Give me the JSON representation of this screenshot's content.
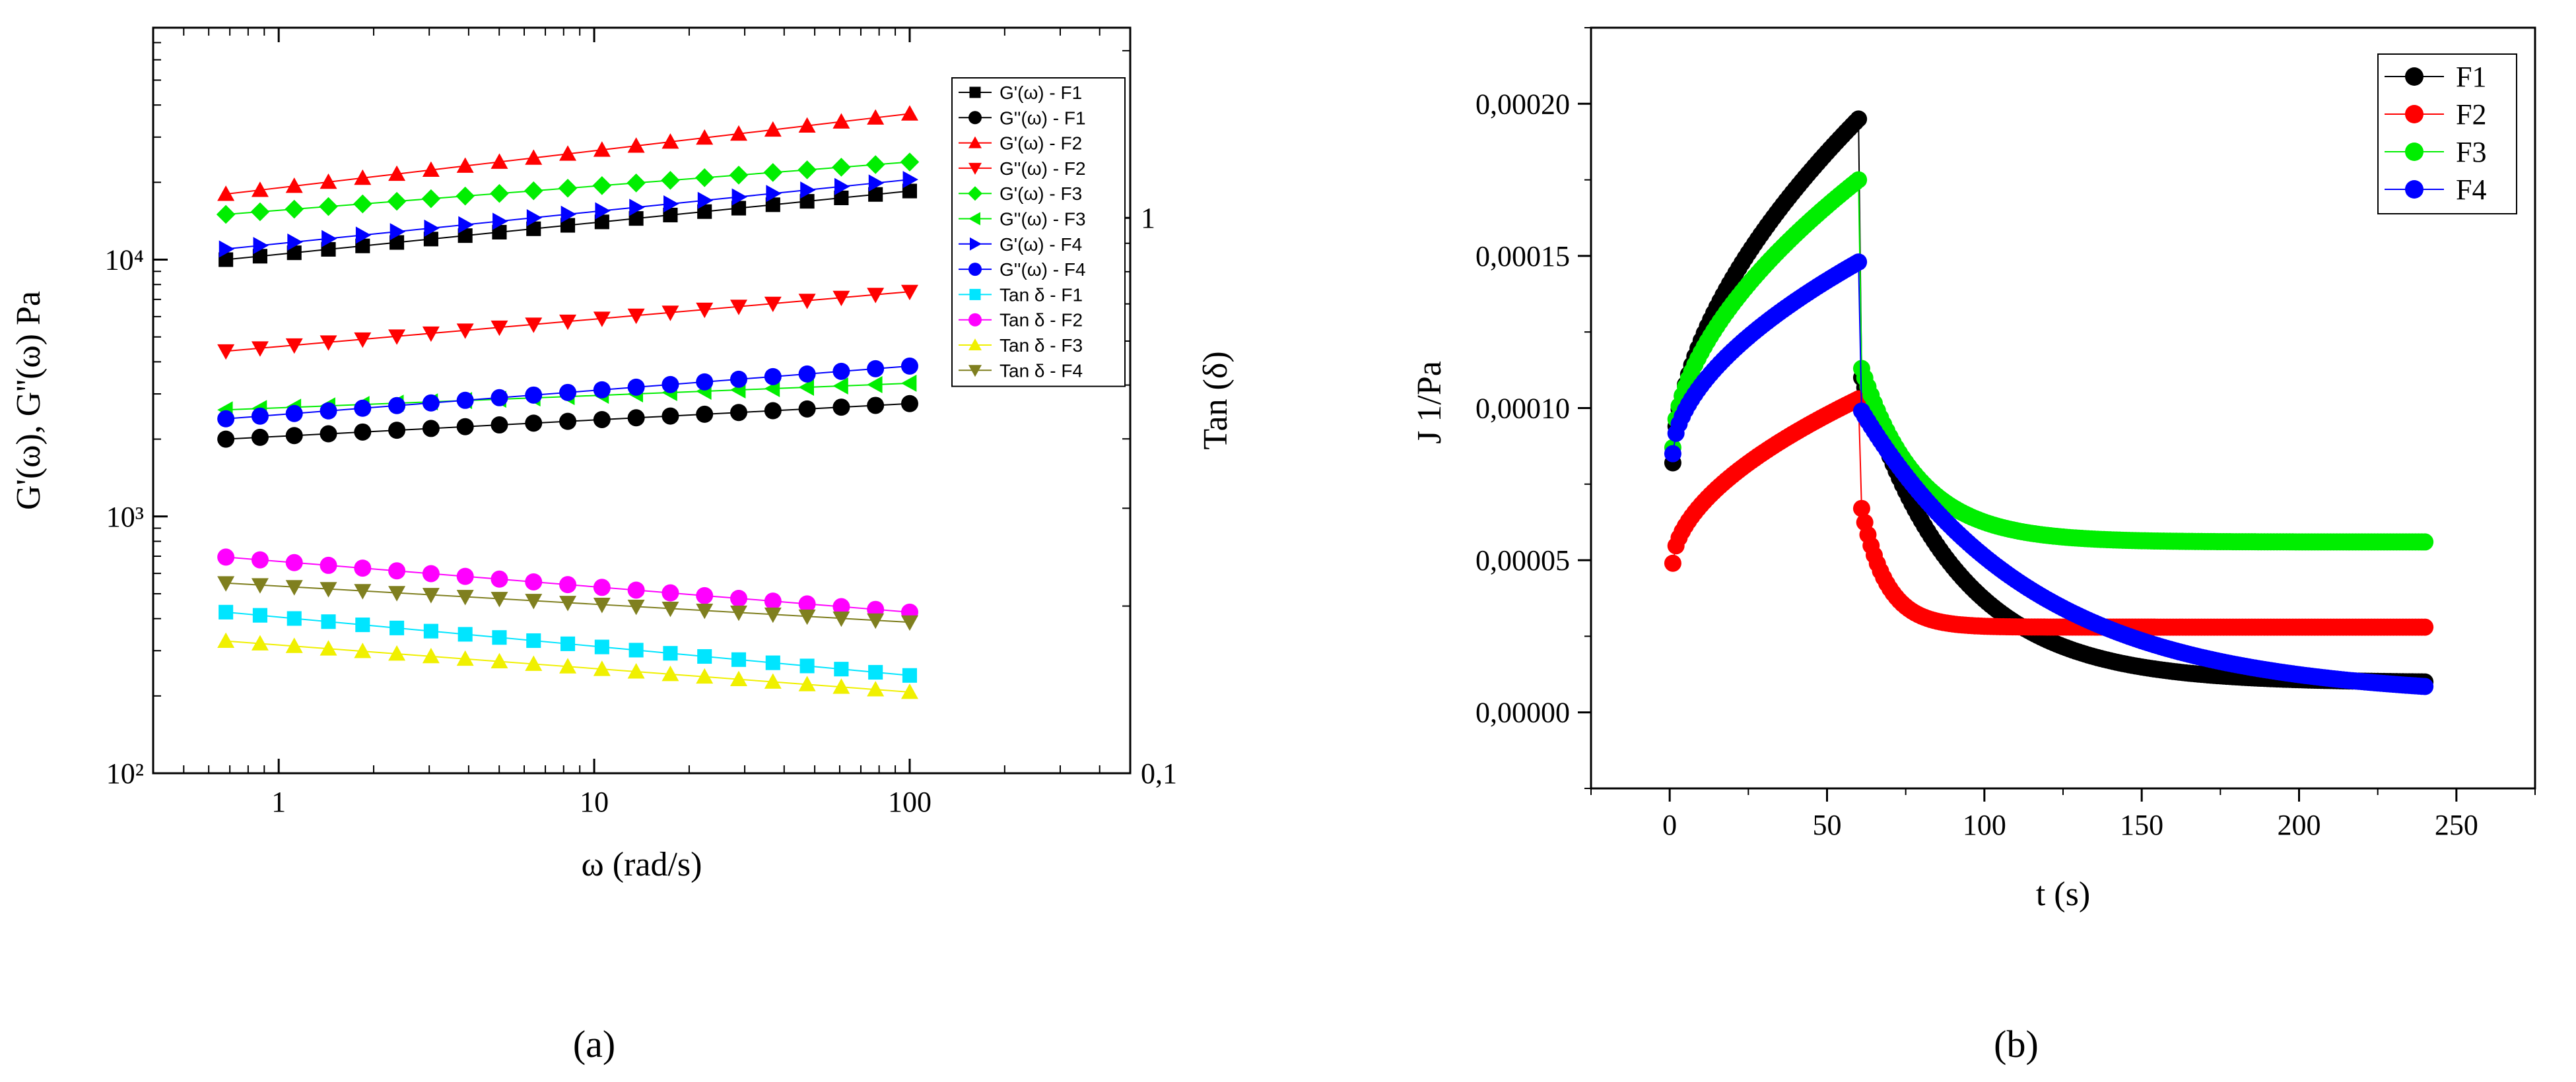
{
  "chart_data": [
    {
      "id": "a",
      "panel_label": "(a)",
      "type": "scatter",
      "xscale": "log",
      "yscale": "log",
      "xlabel": "ω (rad/s)",
      "ylabel": "G'(ω), G''(ω) Pa",
      "y2label": "Tan (δ)",
      "xlim": [
        0.4,
        500
      ],
      "ylim": [
        100,
        80000
      ],
      "y2lim": [
        0.1,
        2.2
      ],
      "xticks": [
        {
          "v": 1,
          "label": "1"
        },
        {
          "v": 10,
          "label": "10"
        },
        {
          "v": 100,
          "label": "100"
        }
      ],
      "yticks": [
        {
          "v": 100,
          "label": "10²"
        },
        {
          "v": 1000,
          "label": "10³"
        },
        {
          "v": 10000,
          "label": "10⁴"
        }
      ],
      "y2ticks": [
        {
          "v": 0.1,
          "label": "0,1"
        },
        {
          "v": 1,
          "label": "1"
        }
      ],
      "legend_position": "top-right",
      "series": [
        {
          "name": "G'(ω) - F1",
          "color": "#000000",
          "marker": "square",
          "axis": "left",
          "start": 10000,
          "end": 18500
        },
        {
          "name": "G''(ω) - F1",
          "color": "#000000",
          "marker": "circle",
          "axis": "left",
          "start": 2000,
          "end": 2750
        },
        {
          "name": "G'(ω) - F2",
          "color": "#ff0000",
          "marker": "triangle-up",
          "axis": "left",
          "start": 18000,
          "end": 37000
        },
        {
          "name": "G''(ω) - F2",
          "color": "#ff0000",
          "marker": "triangle-down",
          "axis": "left",
          "start": 4400,
          "end": 7500
        },
        {
          "name": "G'(ω) - F3",
          "color": "#00ee00",
          "marker": "diamond",
          "axis": "left",
          "start": 15000,
          "end": 24000
        },
        {
          "name": "G''(ω) - F3",
          "color": "#00ee00",
          "marker": "triangle-left",
          "axis": "left",
          "start": 2600,
          "end": 3300
        },
        {
          "name": "G'(ω) - F4",
          "color": "#0000ff",
          "marker": "triangle-right",
          "axis": "left",
          "start": 11000,
          "end": 20500
        },
        {
          "name": "G''(ω) - F4",
          "color": "#0000ff",
          "marker": "circle",
          "axis": "left",
          "start": 2400,
          "end": 3850
        },
        {
          "name": "Tan δ - F1",
          "color": "#00e5ff",
          "marker": "square",
          "axis": "right",
          "start": 0.195,
          "end": 0.15
        },
        {
          "name": "Tan δ - F2",
          "color": "#ff00ff",
          "marker": "circle",
          "axis": "right",
          "start": 0.245,
          "end": 0.195
        },
        {
          "name": "Tan δ - F3",
          "color": "#f0f000",
          "marker": "triangle-up",
          "axis": "right",
          "start": 0.173,
          "end": 0.14
        },
        {
          "name": "Tan δ - F4",
          "color": "#7f7f1f",
          "marker": "triangle-down",
          "axis": "right",
          "start": 0.22,
          "end": 0.187
        }
      ]
    },
    {
      "id": "b",
      "panel_label": "(b)",
      "type": "scatter",
      "xlabel": "t (s)",
      "ylabel": "J 1/Pa",
      "xlim": [
        -25,
        275
      ],
      "ylim": [
        -2.5e-05,
        0.000225
      ],
      "xticks": [
        {
          "v": 0,
          "label": "0"
        },
        {
          "v": 50,
          "label": "50"
        },
        {
          "v": 100,
          "label": "100"
        },
        {
          "v": 150,
          "label": "150"
        },
        {
          "v": 200,
          "label": "200"
        },
        {
          "v": 250,
          "label": "250"
        }
      ],
      "yticks": [
        {
          "v": 0,
          "label": "0,00000"
        },
        {
          "v": 5e-05,
          "label": "0,00005"
        },
        {
          "v": 0.0001,
          "label": "0,00010"
        },
        {
          "v": 0.00015,
          "label": "0,00015"
        },
        {
          "v": 0.0002,
          "label": "0,00020"
        }
      ],
      "legend_position": "top-right",
      "series": [
        {
          "name": "F1",
          "color": "#000000",
          "marker": "circle",
          "creep_start": 8.2e-05,
          "creep_end": 0.000195,
          "recovery_start": 0.00011,
          "recovery_end": 1e-05,
          "recovery_tau": 30
        },
        {
          "name": "F2",
          "color": "#ff0000",
          "marker": "circle",
          "creep_start": 4.9e-05,
          "creep_end": 0.000103,
          "recovery_start": 6.7e-05,
          "recovery_end": 2.8e-05,
          "recovery_tau": 8
        },
        {
          "name": "F3",
          "color": "#00ee00",
          "marker": "circle",
          "creep_start": 8.7e-05,
          "creep_end": 0.000175,
          "recovery_start": 0.000113,
          "recovery_end": 5.6e-05,
          "recovery_tau": 18
        },
        {
          "name": "F4",
          "color": "#0000ff",
          "marker": "circle",
          "creep_start": 8.5e-05,
          "creep_end": 0.000148,
          "recovery_start": 9.9e-05,
          "recovery_end": 8.5e-06,
          "recovery_tau": 55
        }
      ]
    }
  ]
}
